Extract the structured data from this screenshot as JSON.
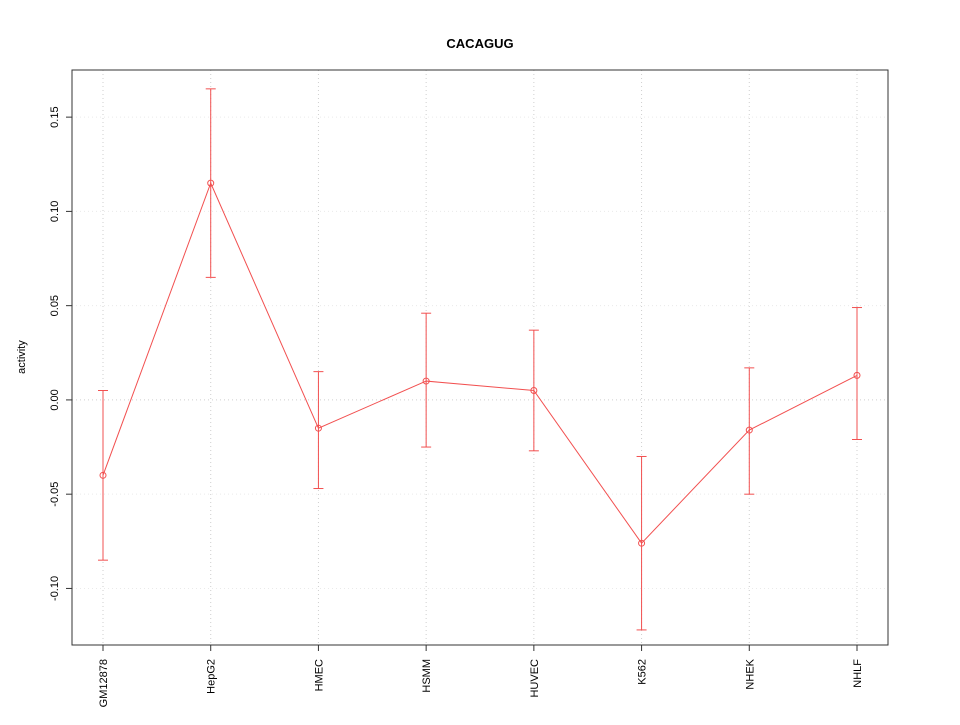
{
  "chart_data": {
    "type": "line",
    "title": "CACAGUG",
    "xlabel": "",
    "ylabel": "activity",
    "categories": [
      "GM12878",
      "HepG2",
      "HMEC",
      "HSMM",
      "HUVEC",
      "K562",
      "NHEK",
      "NHLF"
    ],
    "series": [
      {
        "name": "activity",
        "color": "#f25050",
        "marker": "open-circle",
        "values": [
          -0.04,
          0.115,
          -0.015,
          0.01,
          0.005,
          -0.076,
          -0.016,
          0.013
        ],
        "err_low": [
          -0.085,
          0.065,
          -0.047,
          -0.025,
          -0.027,
          -0.122,
          -0.05,
          -0.021
        ],
        "err_high": [
          0.005,
          0.165,
          0.015,
          0.046,
          0.037,
          -0.03,
          0.017,
          0.049
        ]
      }
    ],
    "ylim": [
      -0.13,
      0.175
    ],
    "ytick_values": [
      -0.1,
      -0.05,
      0.0,
      0.05,
      0.1,
      0.15
    ],
    "ytick_labels": [
      "-0.10",
      "-0.05",
      "0.00",
      "0.05",
      "0.10",
      "0.15"
    ],
    "grid": "dotted",
    "grid_color": "#cfcfcf",
    "box_color": "#333333",
    "legend": "none"
  }
}
